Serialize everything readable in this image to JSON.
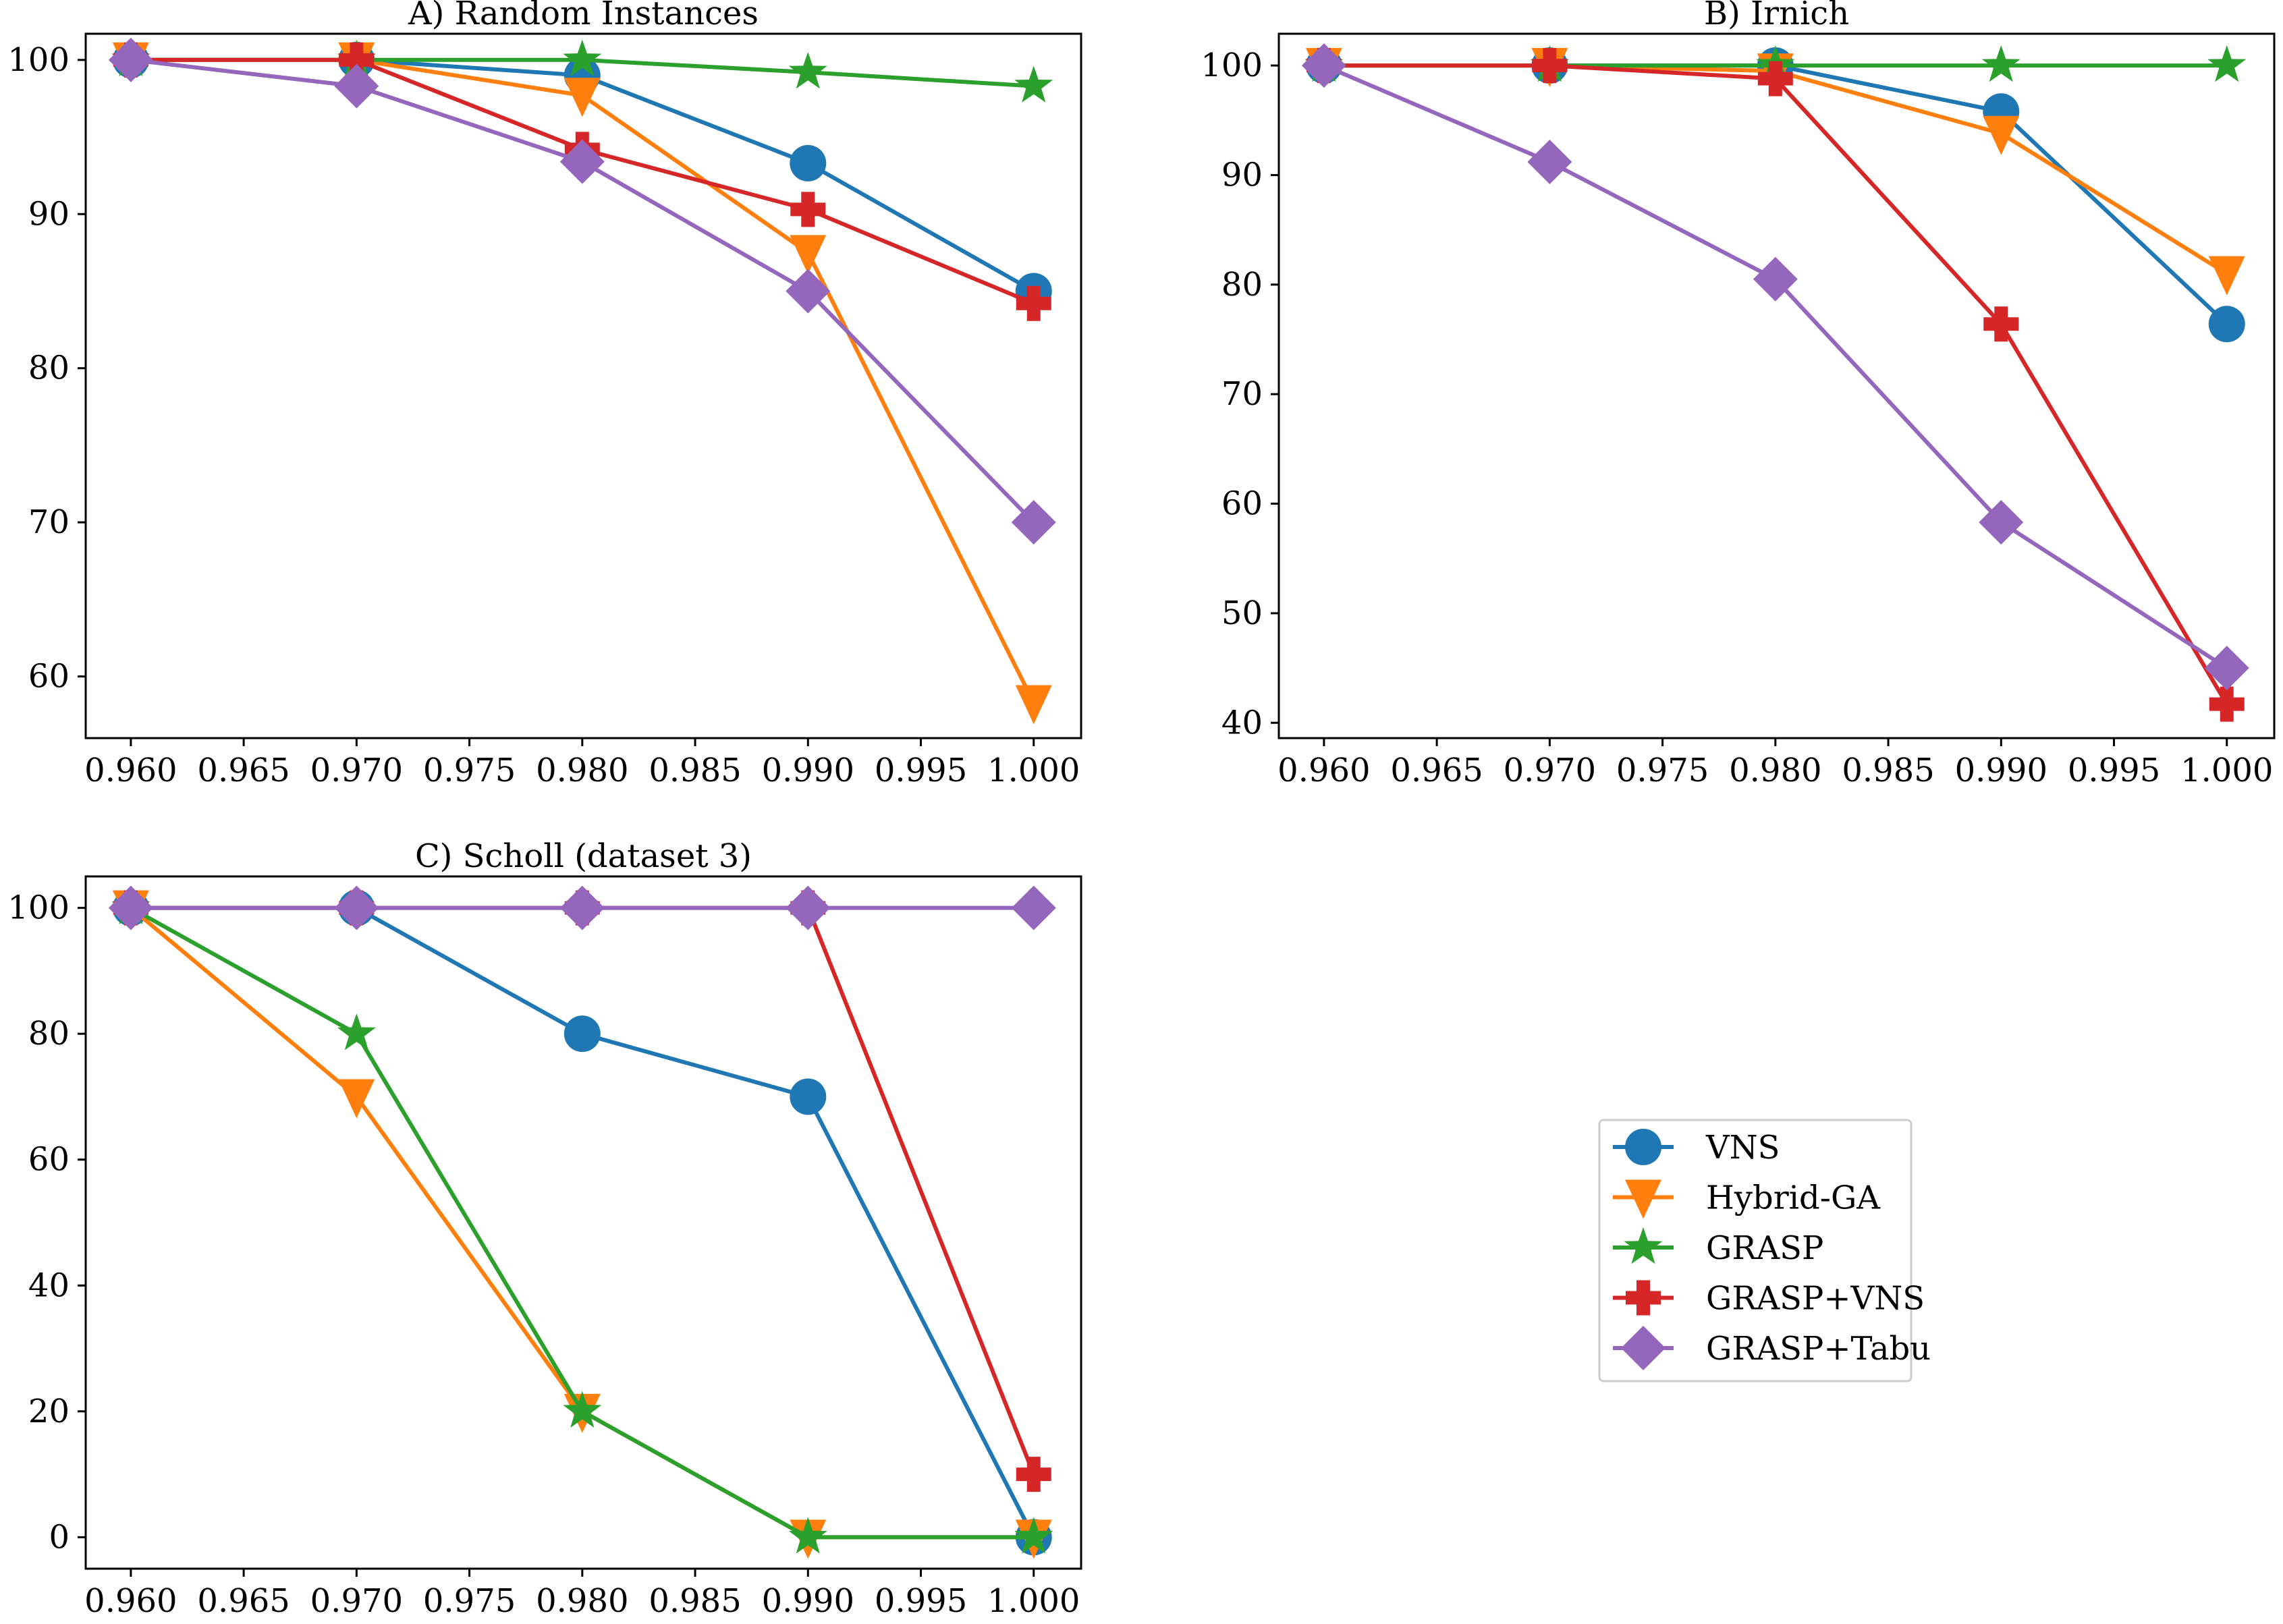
{
  "chart_data": [
    {
      "type": "line",
      "title": "A) Random Instances",
      "xlabel": "",
      "ylabel": "",
      "x": [
        0.96,
        0.97,
        0.98,
        0.99,
        1.0
      ],
      "xlim": [
        0.958,
        1.0021
      ],
      "ylim": [
        56,
        101.7
      ],
      "xticks": [
        "0.960",
        "0.965",
        "0.970",
        "0.975",
        "0.980",
        "0.985",
        "0.990",
        "0.995",
        "1.000"
      ],
      "yticks": [
        "60",
        "70",
        "80",
        "90",
        "100"
      ],
      "series": [
        {
          "name": "VNS",
          "values": [
            100,
            100,
            99,
            93.3,
            85
          ]
        },
        {
          "name": "Hybrid-GA",
          "values": [
            100,
            100,
            97.7,
            87.5,
            58.3
          ]
        },
        {
          "name": "GRASP",
          "values": [
            100,
            100,
            100,
            99.2,
            98.3
          ]
        },
        {
          "name": "GRASP+VNS",
          "values": [
            100,
            100,
            94.2,
            90.3,
            84.2
          ]
        },
        {
          "name": "GRASP+Tabu",
          "values": [
            100,
            98.3,
            93.4,
            85,
            70
          ]
        }
      ]
    },
    {
      "type": "line",
      "title": "B) Irnich",
      "xlabel": "",
      "ylabel": "",
      "x": [
        0.96,
        0.97,
        0.98,
        0.99,
        1.0
      ],
      "xlim": [
        0.958,
        1.0021
      ],
      "ylim": [
        38.6,
        102.9
      ],
      "xticks": [
        "0.960",
        "0.965",
        "0.970",
        "0.975",
        "0.980",
        "0.985",
        "0.990",
        "0.995",
        "1.000"
      ],
      "yticks": [
        "40",
        "50",
        "60",
        "70",
        "80",
        "90",
        "100"
      ],
      "series": [
        {
          "name": "VNS",
          "values": [
            100,
            100,
            100,
            95.8,
            76.4
          ]
        },
        {
          "name": "Hybrid-GA",
          "values": [
            100,
            100,
            99.5,
            93.8,
            81
          ]
        },
        {
          "name": "GRASP",
          "values": [
            100,
            100,
            100,
            100,
            100
          ]
        },
        {
          "name": "GRASP+VNS",
          "values": [
            100,
            100,
            98.8,
            76.4,
            41.7
          ]
        },
        {
          "name": "GRASP+Tabu",
          "values": [
            100,
            91.2,
            80.5,
            58.3,
            45
          ]
        }
      ]
    },
    {
      "type": "line",
      "title": "C) Scholl (dataset 3)",
      "xlabel": "",
      "ylabel": "",
      "x": [
        0.96,
        0.97,
        0.98,
        0.99,
        1.0
      ],
      "xlim": [
        0.958,
        1.0021
      ],
      "ylim": [
        -5,
        105
      ],
      "xticks": [
        "0.960",
        "0.965",
        "0.970",
        "0.975",
        "0.980",
        "0.985",
        "0.990",
        "0.995",
        "1.000"
      ],
      "yticks": [
        "0",
        "20",
        "40",
        "60",
        "80",
        "100"
      ],
      "series": [
        {
          "name": "VNS",
          "values": [
            100,
            100,
            80,
            70,
            0
          ]
        },
        {
          "name": "Hybrid-GA",
          "values": [
            100,
            70,
            20,
            0,
            0
          ]
        },
        {
          "name": "GRASP",
          "values": [
            100,
            80,
            20,
            0,
            0
          ]
        },
        {
          "name": "GRASP+VNS",
          "values": [
            100,
            100,
            100,
            100,
            10
          ]
        },
        {
          "name": "GRASP+Tabu",
          "values": [
            100,
            100,
            100,
            100,
            100
          ]
        }
      ]
    }
  ],
  "legend": {
    "placement": "bottom-right",
    "items": [
      {
        "label": "VNS",
        "color": "#1f77b4",
        "marker": "circle"
      },
      {
        "label": "Hybrid-GA",
        "color": "#ff7f0e",
        "marker": "triangle-down"
      },
      {
        "label": "GRASP",
        "color": "#2ca02c",
        "marker": "star"
      },
      {
        "label": "GRASP+VNS",
        "color": "#d62728",
        "marker": "plus"
      },
      {
        "label": "GRASP+Tabu",
        "color": "#9467bd",
        "marker": "diamond"
      }
    ]
  }
}
